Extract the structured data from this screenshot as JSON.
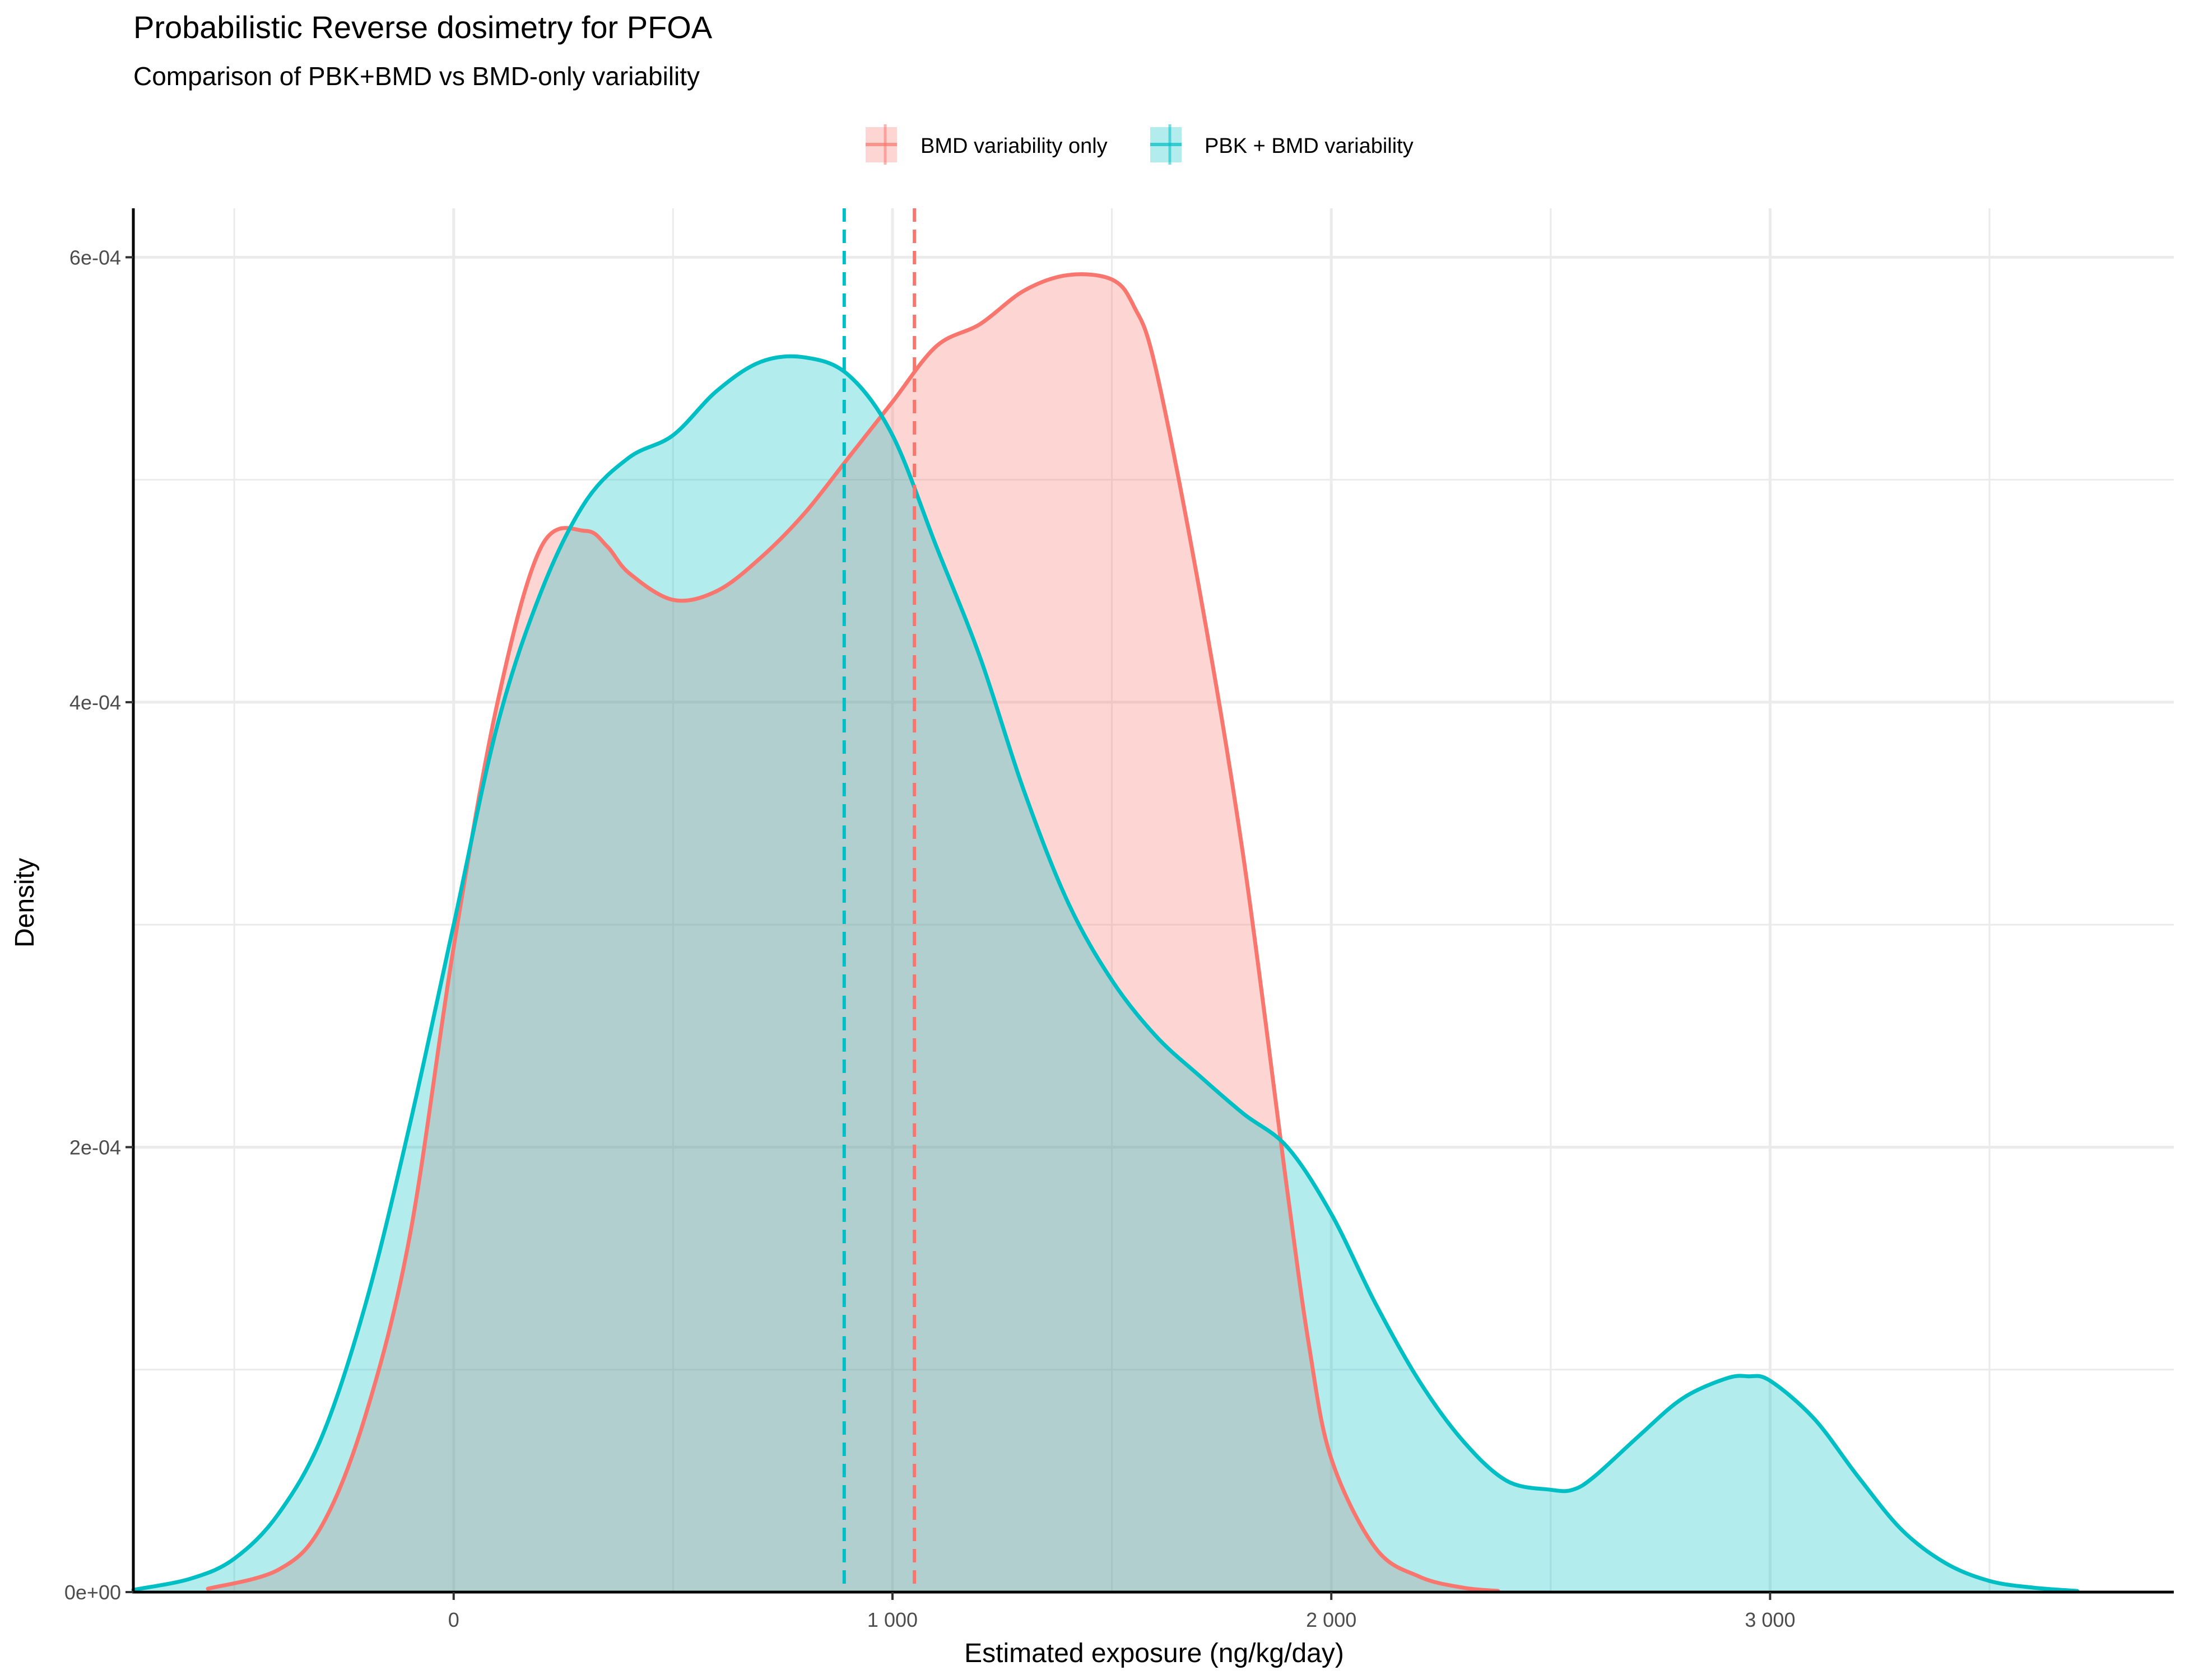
{
  "chart_data": {
    "type": "area",
    "title": "Probabilistic Reverse dosimetry for PFOA",
    "subtitle": "Comparison of PBK+BMD vs BMD-only variability",
    "xlabel": "Estimated exposure (ng/kg/day)",
    "ylabel": "Density",
    "xlim": [
      -730,
      3920
    ],
    "ylim": [
      0,
      0.000622
    ],
    "x_ticks": [
      0,
      1000,
      2000,
      3000
    ],
    "x_tick_labels": [
      "0",
      "1 000",
      "2 000",
      "3 000"
    ],
    "y_ticks": [
      0,
      0.0002,
      0.0004,
      0.0006
    ],
    "y_tick_labels": [
      "0e+00",
      "2e-04",
      "4e-04",
      "6e-04"
    ],
    "x_minor_gridlines": [
      -500,
      500,
      1500,
      2500,
      3500
    ],
    "y_minor_gridlines": [
      0.0001,
      0.0003,
      0.0005
    ],
    "grid": true,
    "legend_position": "top",
    "series": [
      {
        "name": "BMD variability only",
        "color": "#F8766D",
        "mean": 1050,
        "x": [
          -560,
          -400,
          -300,
          -200,
          -100,
          0,
          100,
          200,
          300,
          350,
          400,
          500,
          600,
          700,
          800,
          900,
          1000,
          1100,
          1200,
          1300,
          1400,
          1500,
          1550,
          1600,
          1700,
          1800,
          1900,
          1950,
          2000,
          2100,
          2200,
          2300,
          2380
        ],
        "y": [
          1.5e-06,
          1e-05,
          3e-05,
          8e-05,
          0.00016,
          0.00029,
          0.0004,
          0.00047,
          0.000477,
          0.00047,
          0.000458,
          0.000446,
          0.00045,
          0.000465,
          0.000485,
          0.00051,
          0.000535,
          0.00056,
          0.00057,
          0.000585,
          0.000592,
          0.00059,
          0.000578,
          0.00055,
          0.00045,
          0.00033,
          0.00018,
          0.00011,
          6e-05,
          2e-05,
          7e-06,
          2e-06,
          5e-07
        ]
      },
      {
        "name": "PBK + BMD variability",
        "color": "#00BFC4",
        "mean": 890,
        "x": [
          -730,
          -600,
          -500,
          -400,
          -300,
          -200,
          -100,
          0,
          100,
          200,
          300,
          400,
          500,
          600,
          700,
          800,
          900,
          1000,
          1100,
          1200,
          1300,
          1400,
          1500,
          1600,
          1700,
          1800,
          1900,
          2000,
          2100,
          2200,
          2300,
          2400,
          2500,
          2550,
          2600,
          2700,
          2800,
          2900,
          2950,
          3000,
          3100,
          3200,
          3300,
          3400,
          3500,
          3600,
          3700
        ],
        "y": [
          1e-06,
          6e-06,
          1.5e-05,
          3.5e-05,
          7e-05,
          0.00013,
          0.00021,
          0.0003,
          0.00039,
          0.00045,
          0.00049,
          0.00051,
          0.00052,
          0.00054,
          0.000553,
          0.000555,
          0.000547,
          0.00052,
          0.00047,
          0.00042,
          0.00036,
          0.00031,
          0.000275,
          0.00025,
          0.000232,
          0.000215,
          0.0002,
          0.00017,
          0.00013,
          9.5e-05,
          6.8e-05,
          5e-05,
          4.6e-05,
          4.6e-05,
          5.2e-05,
          7e-05,
          8.7e-05,
          9.6e-05,
          9.7e-05,
          9.5e-05,
          7.8e-05,
          5.2e-05,
          2.8e-05,
          1.3e-05,
          5e-06,
          2e-06,
          5e-07
        ]
      }
    ]
  }
}
